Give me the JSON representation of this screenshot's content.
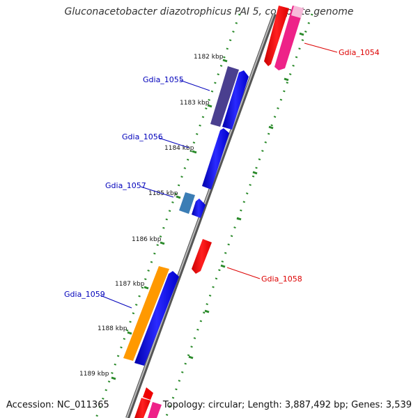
{
  "title": "Gluconacetobacter diazotrophicus PAI 5, complete genome",
  "accession": "Accession: NC_011365",
  "topology": "Topology: circular; Length: 3,887,492 bp; Genes: 3,539",
  "kbp_ticks": [
    "1182 kbp",
    "1183 kbp",
    "1184 kbp",
    "1185 kbp",
    "1186 kbp",
    "1187 kbp",
    "1188 kbp",
    "1189 kbp"
  ],
  "genes": [
    {
      "name": "Gdia_1054",
      "color": "#dd0000"
    },
    {
      "name": "Gdia_1055",
      "color": "#0000bb"
    },
    {
      "name": "Gdia_1056",
      "color": "#0000bb"
    },
    {
      "name": "Gdia_1057",
      "color": "#0000bb"
    },
    {
      "name": "Gdia_1058",
      "color": "#dd0000"
    },
    {
      "name": "Gdia_1059",
      "color": "#0000bb"
    }
  ],
  "colors": {
    "backbone": "#888888",
    "tick_green": "#2a8a2a",
    "forward_gene": "#1010ee",
    "reverse_gene": "#ee0000",
    "pink_gene": "#ee2288",
    "purple_gene": "#4a3f8f",
    "steelblue_gene": "#3b7db5",
    "orange_gene": "#ff9900"
  }
}
